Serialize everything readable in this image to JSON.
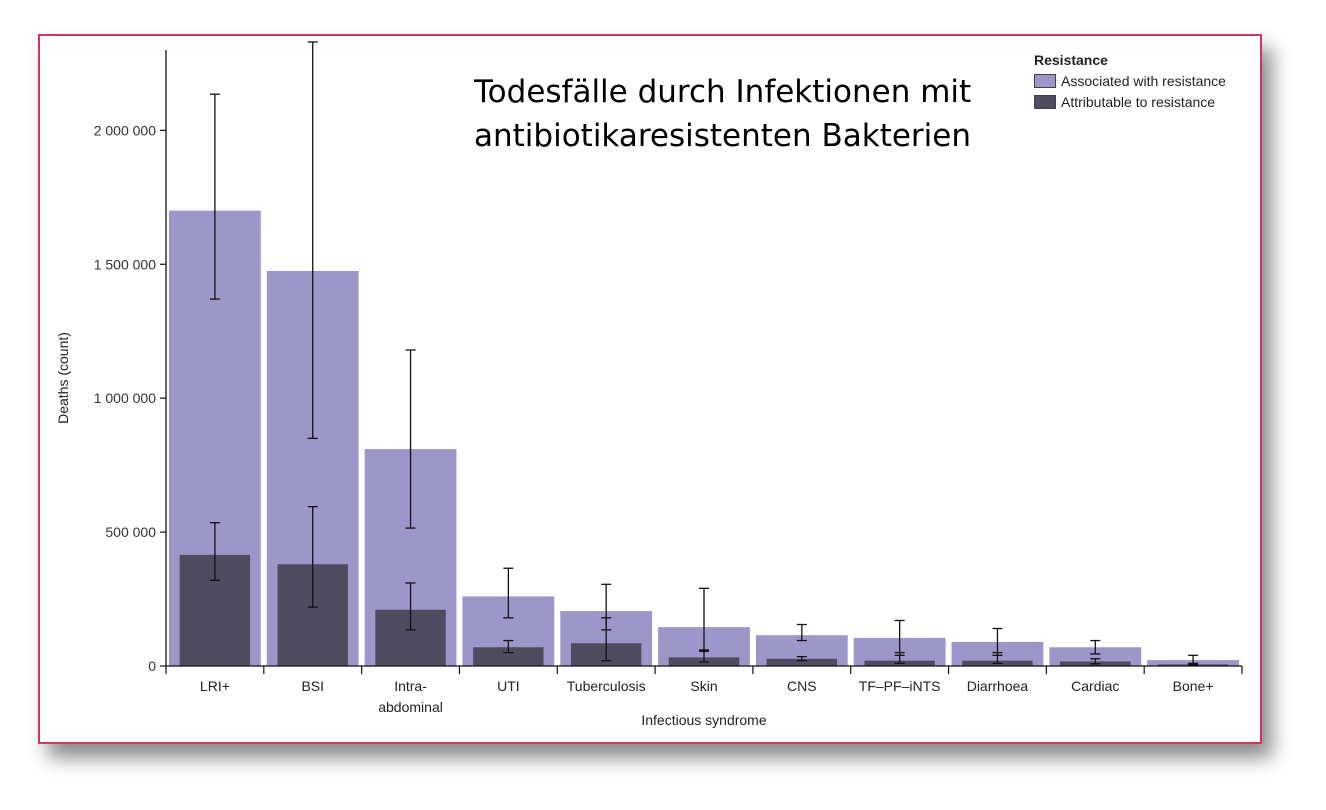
{
  "chart_data": {
    "type": "bar",
    "title_lines": [
      "Todesfälle durch Infektionen mit",
      "antibiotikaresistenten Bakterien"
    ],
    "xlabel": "Infectious syndrome",
    "ylabel": "Deaths (count)",
    "ylim": [
      0,
      2300000
    ],
    "yticks": [
      0,
      500000,
      1000000,
      1500000,
      2000000
    ],
    "ytick_labels": [
      "0",
      "500 000",
      "1 000 000",
      "1 500 000",
      "2 000 000"
    ],
    "categories": [
      [
        "LRI+"
      ],
      [
        "BSI"
      ],
      [
        "Intra-",
        "abdominal"
      ],
      [
        "UTI"
      ],
      [
        "Tuberculosis"
      ],
      [
        "Skin"
      ],
      [
        "CNS"
      ],
      [
        "TF–PF–iNTS"
      ],
      [
        "Diarrhoea"
      ],
      [
        "Cardiac"
      ],
      [
        "Bone+"
      ]
    ],
    "legend": {
      "title": "Resistance",
      "position": "top-right"
    },
    "series": [
      {
        "name": "Associated with resistance",
        "color": "#9d97c9",
        "values": [
          1700000,
          1475000,
          810000,
          260000,
          205000,
          145000,
          115000,
          105000,
          90000,
          70000,
          22000
        ],
        "error_low": [
          1370000,
          850000,
          515000,
          180000,
          135000,
          55000,
          95000,
          40000,
          40000,
          45000,
          5000
        ],
        "error_high": [
          2135000,
          2330000,
          1180000,
          365000,
          305000,
          290000,
          155000,
          170000,
          140000,
          95000,
          40000
        ]
      },
      {
        "name": "Attributable to resistance",
        "color": "#4f4c60",
        "values": [
          415000,
          380000,
          210000,
          70000,
          85000,
          32000,
          27000,
          20000,
          20000,
          17000,
          6000
        ],
        "error_low": [
          320000,
          220000,
          135000,
          50000,
          20000,
          15000,
          20000,
          10000,
          10000,
          8000,
          2000
        ],
        "error_high": [
          535000,
          595000,
          310000,
          95000,
          180000,
          60000,
          35000,
          50000,
          50000,
          27000,
          10000
        ]
      }
    ]
  }
}
